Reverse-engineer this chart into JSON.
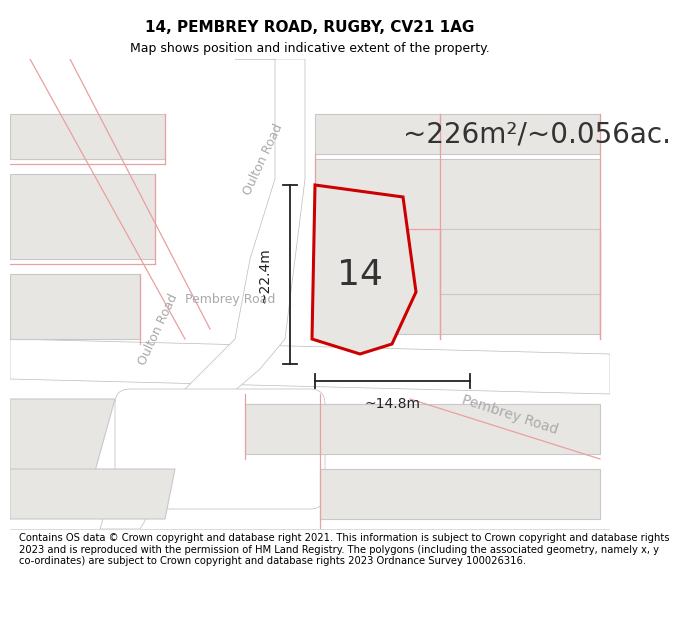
{
  "title": "14, PEMBREY ROAD, RUGBY, CV21 1AG",
  "subtitle": "Map shows position and indicative extent of the property.",
  "area_text": "~226m²/~0.056ac.",
  "property_number": "14",
  "measurement1_text": "~22.4m",
  "measurement2_text": "~14.8m",
  "footer_text": "Contains OS data © Crown copyright and database right 2021. This information is subject to Crown copyright and database rights 2023 and is reproduced with the permission of HM Land Registry. The polygons (including the associated geometry, namely x, y co-ordinates) are subject to Crown copyright and database rights 2023 Ordnance Survey 100026316.",
  "map_bg": "#f7f6f4",
  "block_fill": "#e8e6e3",
  "block_edge": "#c8c8c8",
  "road_fill": "#ffffff",
  "road_edge": "#cccccc",
  "prop_fill": "#e8e6e3",
  "prop_edge": "#cc0000",
  "dim_color": "#222222",
  "label_color": "#aaaaaa",
  "thin_line_color": "#e8a0a0",
  "title_fs": 11,
  "subtitle_fs": 9,
  "area_fs": 20,
  "num_fs": 26,
  "footer_fs": 7.2,
  "road_label_fs": 9
}
